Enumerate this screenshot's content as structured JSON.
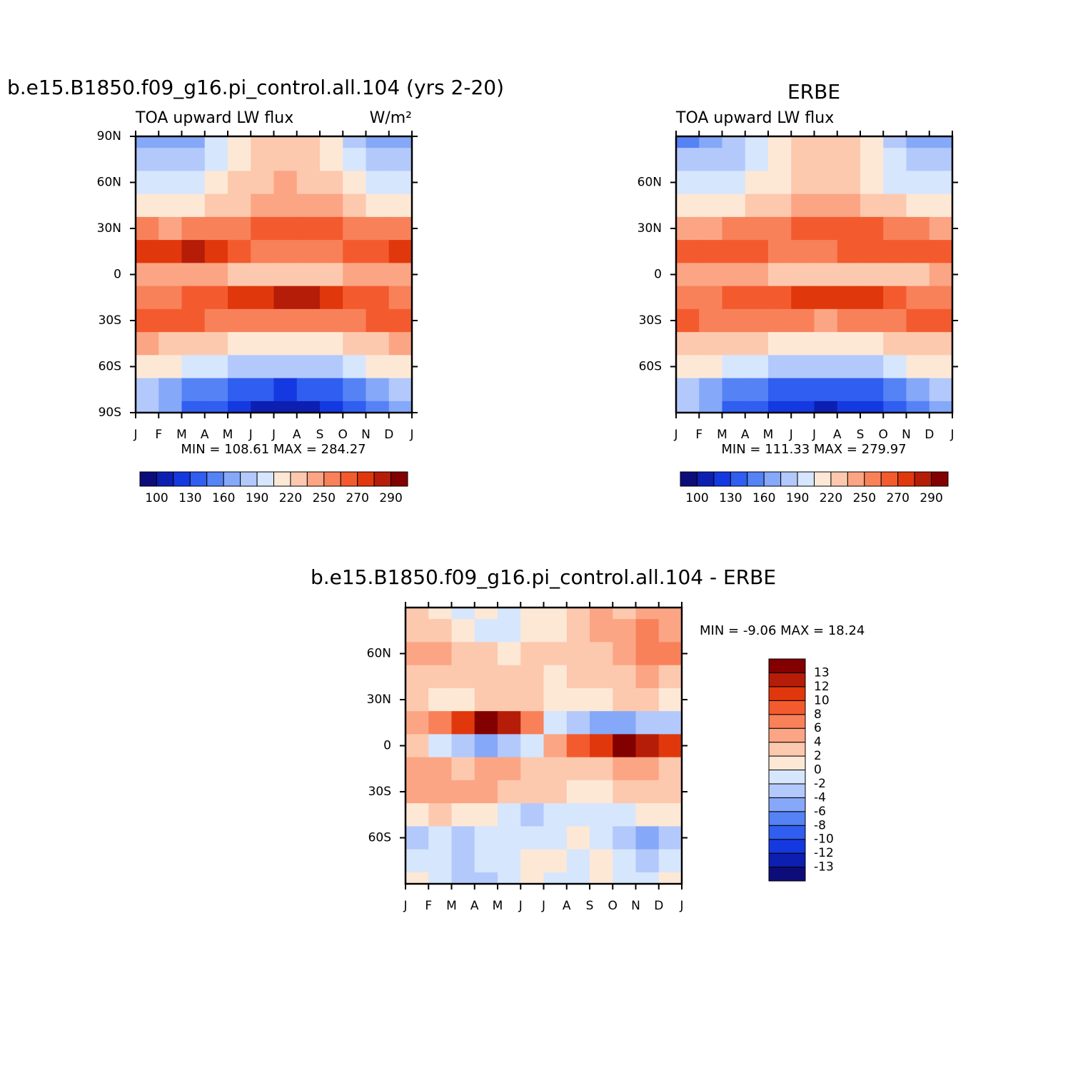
{
  "chart_data": [
    {
      "type": "contour",
      "title": "b.e15.B1850.f09_g16.pi_control.all.104 (yrs 2-20)",
      "left_string": "TOA upward LW flux",
      "right_string": "W/m²",
      "stats": "MIN = 108.61  MAX = 284.27",
      "months": [
        "J",
        "F",
        "M",
        "A",
        "M",
        "J",
        "J",
        "A",
        "S",
        "O",
        "N",
        "D",
        "J"
      ],
      "lats": [
        90,
        75,
        60,
        45,
        30,
        15,
        0,
        -15,
        -30,
        -45,
        -60,
        -75,
        -90
      ],
      "ylim": [
        -90,
        90
      ],
      "yticks": [
        {
          "value": 90,
          "label": "90N"
        },
        {
          "value": 60,
          "label": "60N"
        },
        {
          "value": 30,
          "label": "30N"
        },
        0,
        {
          "value": -30,
          "label": "30S"
        },
        {
          "value": -60,
          "label": "60S"
        },
        {
          "value": -90,
          "label": "90S"
        }
      ],
      "values": [
        [
          170,
          165,
          170,
          190,
          210,
          225,
          230,
          225,
          205,
          185,
          170,
          168
        ],
        [
          180,
          175,
          178,
          195,
          215,
          228,
          232,
          228,
          210,
          192,
          180,
          178
        ],
        [
          195,
          192,
          195,
          205,
          220,
          232,
          236,
          232,
          220,
          205,
          197,
          195
        ],
        [
          215,
          212,
          215,
          222,
          232,
          240,
          245,
          242,
          235,
          225,
          218,
          215
        ],
        [
          250,
          248,
          250,
          252,
          258,
          262,
          265,
          264,
          260,
          256,
          252,
          250
        ],
        [
          272,
          276,
          280,
          270,
          262,
          258,
          256,
          256,
          258,
          262,
          266,
          270
        ],
        [
          245,
          242,
          240,
          238,
          230,
          225,
          222,
          225,
          230,
          236,
          240,
          244
        ],
        [
          255,
          258,
          262,
          268,
          272,
          278,
          280,
          280,
          276,
          268,
          262,
          258
        ],
        [
          265,
          262,
          260,
          258,
          255,
          252,
          250,
          252,
          255,
          258,
          262,
          265
        ],
        [
          235,
          232,
          228,
          222,
          215,
          210,
          208,
          210,
          215,
          222,
          230,
          235
        ],
        [
          215,
          210,
          200,
          190,
          185,
          180,
          180,
          182,
          188,
          198,
          208,
          215
        ],
        [
          180,
          170,
          155,
          145,
          138,
          130,
          128,
          130,
          135,
          145,
          160,
          175
        ],
        [
          175,
          160,
          140,
          130,
          120,
          112,
          110,
          112,
          120,
          135,
          150,
          170
        ]
      ],
      "colorbar": {
        "orientation": "horizontal",
        "levels": [
          100,
          115,
          130,
          145,
          160,
          175,
          190,
          205,
          220,
          235,
          250,
          260,
          270,
          280,
          290
        ],
        "ticks": [
          100,
          130,
          160,
          190,
          220,
          250,
          270,
          290
        ],
        "colors": [
          "#0d0d7a",
          "#0c1fb0",
          "#1539e0",
          "#2f5ef0",
          "#5582f5",
          "#86a8f8",
          "#b3c9fb",
          "#d6e6fd",
          "#fde8d6",
          "#fcc9ae",
          "#fba584",
          "#f8815a",
          "#f35b2e",
          "#e0380c",
          "#b51d08",
          "#830000"
        ]
      }
    },
    {
      "type": "contour",
      "title": "ERBE",
      "left_string": "TOA upward LW flux",
      "stats": "MIN = 111.33  MAX = 279.97",
      "months": [
        "J",
        "F",
        "M",
        "A",
        "M",
        "J",
        "J",
        "A",
        "S",
        "O",
        "N",
        "D",
        "J"
      ],
      "lats": [
        90,
        75,
        60,
        45,
        30,
        15,
        0,
        -15,
        -30,
        -45,
        -60,
        -75,
        -90
      ],
      "ylim": [
        -90,
        90
      ],
      "yticks": [
        {
          "value": 60,
          "label": "60N"
        },
        {
          "value": 30,
          "label": "30N"
        },
        0,
        {
          "value": -30,
          "label": "30S"
        },
        {
          "value": -60,
          "label": "60S"
        }
      ],
      "values": [
        [
          158,
          165,
          175,
          192,
          210,
          222,
          226,
          222,
          205,
          185,
          170,
          160
        ],
        [
          175,
          178,
          182,
          196,
          214,
          226,
          230,
          226,
          210,
          192,
          180,
          176
        ],
        [
          192,
          192,
          196,
          205,
          218,
          230,
          234,
          230,
          218,
          202,
          194,
          192
        ],
        [
          212,
          210,
          214,
          220,
          230,
          238,
          244,
          240,
          232,
          222,
          214,
          212
        ],
        [
          248,
          248,
          250,
          252,
          256,
          262,
          265,
          264,
          260,
          254,
          250,
          248
        ],
        [
          266,
          268,
          268,
          262,
          258,
          256,
          258,
          260,
          262,
          264,
          262,
          266
        ],
        [
          240,
          240,
          242,
          240,
          234,
          228,
          222,
          220,
          222,
          228,
          232,
          236
        ],
        [
          252,
          255,
          260,
          264,
          268,
          274,
          276,
          276,
          272,
          264,
          258,
          254
        ],
        [
          262,
          258,
          256,
          254,
          252,
          250,
          248,
          250,
          252,
          256,
          260,
          262
        ],
        [
          232,
          230,
          226,
          220,
          214,
          210,
          208,
          210,
          214,
          220,
          228,
          232
        ],
        [
          215,
          210,
          200,
          192,
          186,
          182,
          180,
          182,
          188,
          198,
          208,
          214
        ],
        [
          182,
          172,
          158,
          148,
          140,
          132,
          130,
          132,
          138,
          148,
          162,
          178
        ],
        [
          175,
          160,
          142,
          130,
          122,
          115,
          112,
          115,
          122,
          135,
          150,
          170
        ]
      ],
      "colorbar": {
        "orientation": "horizontal",
        "levels": [
          100,
          115,
          130,
          145,
          160,
          175,
          190,
          205,
          220,
          235,
          250,
          260,
          270,
          280,
          290
        ],
        "ticks": [
          100,
          130,
          160,
          190,
          220,
          250,
          270,
          290
        ],
        "colors": [
          "#0d0d7a",
          "#0c1fb0",
          "#1539e0",
          "#2f5ef0",
          "#5582f5",
          "#86a8f8",
          "#b3c9fb",
          "#d6e6fd",
          "#fde8d6",
          "#fcc9ae",
          "#fba584",
          "#f8815a",
          "#f35b2e",
          "#e0380c",
          "#b51d08",
          "#830000"
        ]
      }
    },
    {
      "type": "contour",
      "title": "b.e15.B1850.f09_g16.pi_control.all.104 - ERBE",
      "stats": "MIN =   -9.06 MAX =   18.24",
      "months": [
        "J",
        "F",
        "M",
        "A",
        "M",
        "J",
        "J",
        "A",
        "S",
        "O",
        "N",
        "D",
        "J"
      ],
      "lats": [
        90,
        75,
        60,
        45,
        30,
        15,
        0,
        -15,
        -30,
        -45,
        -60,
        -75,
        -90
      ],
      "ylim": [
        -90,
        90
      ],
      "yticks": [
        {
          "value": 60,
          "label": "60N"
        },
        {
          "value": 30,
          "label": "30N"
        },
        0,
        {
          "value": -30,
          "label": "30S"
        },
        {
          "value": -60,
          "label": "60S"
        }
      ],
      "values": [
        [
          2,
          0,
          -2,
          1,
          -1,
          0,
          0,
          2,
          4,
          3,
          5,
          4
        ],
        [
          3,
          2,
          0,
          -1,
          -2,
          0,
          1,
          3,
          4,
          5,
          6,
          5
        ],
        [
          4,
          4,
          3,
          2,
          1,
          2,
          2,
          2,
          3,
          5,
          6,
          6
        ],
        [
          3,
          3,
          2,
          2,
          2,
          2,
          1,
          2,
          2,
          3,
          4,
          3
        ],
        [
          2,
          1,
          1,
          2,
          2,
          2,
          1,
          1,
          1,
          2,
          2,
          1
        ],
        [
          4,
          6,
          11,
          13,
          12,
          6,
          -2,
          -4,
          -5,
          -5,
          -4,
          -3
        ],
        [
          2,
          -2,
          -4,
          -5,
          -4,
          -2,
          4,
          8,
          11,
          13,
          12,
          10
        ],
        [
          4,
          5,
          3,
          4,
          5,
          3,
          2,
          2,
          3,
          4,
          5,
          3
        ],
        [
          4,
          5,
          5,
          4,
          3,
          3,
          2,
          1,
          1,
          2,
          3,
          3
        ],
        [
          1,
          2,
          1,
          0,
          -1,
          -4,
          -2,
          -1,
          -1,
          -2,
          0,
          1
        ],
        [
          -3,
          -2,
          -3,
          -2,
          -2,
          -2,
          -1,
          0,
          -2,
          -3,
          -5,
          -3
        ],
        [
          -1,
          -2,
          -3,
          -2,
          -1,
          0,
          1,
          -1,
          0,
          -2,
          -3,
          -1
        ],
        [
          0,
          -2,
          -4,
          -3,
          -1,
          0,
          -2,
          -1,
          0,
          -1,
          -2,
          0
        ]
      ],
      "colorbar": {
        "orientation": "vertical",
        "levels": [
          -13,
          -12,
          -10,
          -8,
          -6,
          -4,
          -2,
          0,
          2,
          4,
          6,
          8,
          10,
          12,
          13
        ],
        "ticks": [
          -13,
          -12,
          -10,
          -8,
          -6,
          -4,
          -2,
          0,
          2,
          4,
          6,
          8,
          10,
          12,
          13
        ],
        "colors": [
          "#0d0d7a",
          "#0c1fb0",
          "#1539e0",
          "#2f5ef0",
          "#5582f5",
          "#86a8f8",
          "#b3c9fb",
          "#d6e6fd",
          "#fde8d6",
          "#fcc9ae",
          "#fba584",
          "#f8815a",
          "#f35b2e",
          "#e0380c",
          "#b51d08",
          "#830000"
        ]
      }
    }
  ]
}
